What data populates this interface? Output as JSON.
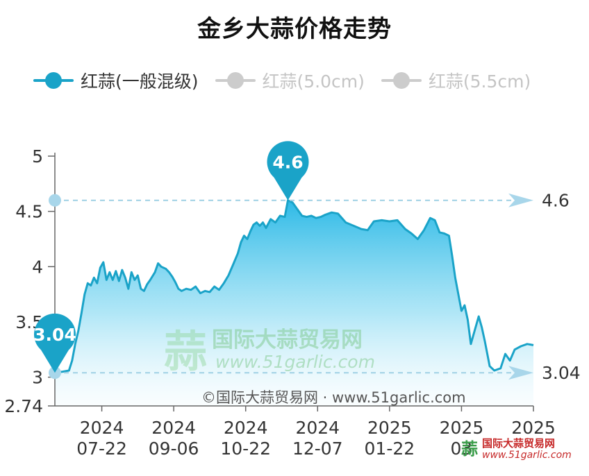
{
  "title": "金乡大蒜价格走势",
  "legend": [
    {
      "label": "红蒜(一般混级)",
      "color": "#1aa3c8",
      "active": true
    },
    {
      "label": "红蒜(5.0cm)",
      "color": "#cccccc",
      "active": false
    },
    {
      "label": "红蒜(5.5cm)",
      "color": "#cccccc",
      "active": false
    }
  ],
  "watermark": {
    "center_cn": "国际大蒜贸易网",
    "center_url": "www.51garlic.com",
    "center_logo_char": "蒜",
    "copyright": "©国际大蒜贸易网 · www.51garlic.com",
    "corner_cn": "国际大蒜贸易网",
    "corner_url": "www.51garlic.com"
  },
  "chart_data": {
    "type": "area",
    "title": "金乡大蒜价格走势",
    "xlabel": "",
    "ylabel": "",
    "ylim": [
      2.74,
      5
    ],
    "y_ticks": [
      "2.74",
      "3",
      "3.5",
      "4",
      "4.5",
      "5"
    ],
    "x_ticks": [
      {
        "label": [
          "2024",
          "07-22"
        ],
        "date": "2024-07-22"
      },
      {
        "label": [
          "2024",
          "09-06"
        ],
        "date": "2024-09-06"
      },
      {
        "label": [
          "2024",
          "10-22"
        ],
        "date": "2024-10-22"
      },
      {
        "label": [
          "2024",
          "12-07"
        ],
        "date": "2024-12-07"
      },
      {
        "label": [
          "2025",
          "01-22"
        ],
        "date": "2025-01-22"
      },
      {
        "label": [
          "2025",
          "03"
        ],
        "date": "2025-03-09"
      },
      {
        "label": [
          "2025",
          ""
        ],
        "date": "2025-04-24"
      }
    ],
    "x_range": [
      "2024-06-22",
      "2025-04-24"
    ],
    "grid": false,
    "legend_position": "top-left",
    "series": [
      {
        "name": "红蒜(一般混级)",
        "color": "#1aa3c8",
        "points": [
          [
            "2024-06-22",
            3.04
          ],
          [
            "2024-06-27",
            3.05
          ],
          [
            "2024-07-01",
            3.06
          ],
          [
            "2024-07-03",
            3.15
          ],
          [
            "2024-07-05",
            3.3
          ],
          [
            "2024-07-07",
            3.42
          ],
          [
            "2024-07-09",
            3.58
          ],
          [
            "2024-07-11",
            3.75
          ],
          [
            "2024-07-13",
            3.85
          ],
          [
            "2024-07-15",
            3.83
          ],
          [
            "2024-07-17",
            3.9
          ],
          [
            "2024-07-19",
            3.85
          ],
          [
            "2024-07-21",
            3.99
          ],
          [
            "2024-07-23",
            4.04
          ],
          [
            "2024-07-25",
            3.88
          ],
          [
            "2024-07-27",
            3.95
          ],
          [
            "2024-07-29",
            3.88
          ],
          [
            "2024-07-31",
            3.96
          ],
          [
            "2024-08-02",
            3.87
          ],
          [
            "2024-08-04",
            3.97
          ],
          [
            "2024-08-06",
            3.9
          ],
          [
            "2024-08-08",
            3.8
          ],
          [
            "2024-08-10",
            3.95
          ],
          [
            "2024-08-12",
            3.88
          ],
          [
            "2024-08-14",
            3.92
          ],
          [
            "2024-08-16",
            3.8
          ],
          [
            "2024-08-18",
            3.78
          ],
          [
            "2024-08-20",
            3.84
          ],
          [
            "2024-08-22",
            3.88
          ],
          [
            "2024-08-25",
            3.95
          ],
          [
            "2024-08-27",
            4.03
          ],
          [
            "2024-08-29",
            4.0
          ],
          [
            "2024-09-01",
            3.98
          ],
          [
            "2024-09-03",
            3.95
          ],
          [
            "2024-09-05",
            3.91
          ],
          [
            "2024-09-07",
            3.86
          ],
          [
            "2024-09-09",
            3.8
          ],
          [
            "2024-09-11",
            3.78
          ],
          [
            "2024-09-14",
            3.8
          ],
          [
            "2024-09-17",
            3.79
          ],
          [
            "2024-09-20",
            3.82
          ],
          [
            "2024-09-23",
            3.76
          ],
          [
            "2024-09-26",
            3.78
          ],
          [
            "2024-09-29",
            3.77
          ],
          [
            "2024-10-02",
            3.82
          ],
          [
            "2024-10-05",
            3.79
          ],
          [
            "2024-10-08",
            3.85
          ],
          [
            "2024-10-11",
            3.92
          ],
          [
            "2024-10-14",
            4.02
          ],
          [
            "2024-10-17",
            4.12
          ],
          [
            "2024-10-19",
            4.22
          ],
          [
            "2024-10-21",
            4.28
          ],
          [
            "2024-10-23",
            4.25
          ],
          [
            "2024-10-25",
            4.32
          ],
          [
            "2024-10-27",
            4.38
          ],
          [
            "2024-10-29",
            4.4
          ],
          [
            "2024-10-31",
            4.37
          ],
          [
            "2024-11-02",
            4.4
          ],
          [
            "2024-11-04",
            4.35
          ],
          [
            "2024-11-07",
            4.43
          ],
          [
            "2024-11-10",
            4.4
          ],
          [
            "2024-11-13",
            4.46
          ],
          [
            "2024-11-16",
            4.45
          ],
          [
            "2024-11-18",
            4.6
          ],
          [
            "2024-11-21",
            4.58
          ],
          [
            "2024-11-24",
            4.52
          ],
          [
            "2024-11-27",
            4.46
          ],
          [
            "2024-11-30",
            4.45
          ],
          [
            "2024-12-03",
            4.46
          ],
          [
            "2024-12-06",
            4.44
          ],
          [
            "2024-12-09",
            4.45
          ],
          [
            "2024-12-12",
            4.47
          ],
          [
            "2024-12-16",
            4.49
          ],
          [
            "2024-12-20",
            4.48
          ],
          [
            "2024-12-25",
            4.4
          ],
          [
            "2024-12-30",
            4.37
          ],
          [
            "2025-01-04",
            4.34
          ],
          [
            "2025-01-08",
            4.33
          ],
          [
            "2025-01-12",
            4.41
          ],
          [
            "2025-01-17",
            4.42
          ],
          [
            "2025-01-22",
            4.41
          ],
          [
            "2025-01-27",
            4.42
          ],
          [
            "2025-02-01",
            4.34
          ],
          [
            "2025-02-05",
            4.3
          ],
          [
            "2025-02-09",
            4.25
          ],
          [
            "2025-02-13",
            4.33
          ],
          [
            "2025-02-17",
            4.44
          ],
          [
            "2025-02-20",
            4.42
          ],
          [
            "2025-02-23",
            4.31
          ],
          [
            "2025-02-26",
            4.3
          ],
          [
            "2025-03-01",
            4.28
          ],
          [
            "2025-03-03",
            4.1
          ],
          [
            "2025-03-05",
            3.9
          ],
          [
            "2025-03-07",
            3.75
          ],
          [
            "2025-03-09",
            3.6
          ],
          [
            "2025-03-11",
            3.65
          ],
          [
            "2025-03-13",
            3.52
          ],
          [
            "2025-03-15",
            3.3
          ],
          [
            "2025-03-17",
            3.4
          ],
          [
            "2025-03-20",
            3.55
          ],
          [
            "2025-03-22",
            3.45
          ],
          [
            "2025-03-24",
            3.32
          ],
          [
            "2025-03-27",
            3.1
          ],
          [
            "2025-03-30",
            3.06
          ],
          [
            "2025-04-03",
            3.08
          ],
          [
            "2025-04-06",
            3.21
          ],
          [
            "2025-04-09",
            3.15
          ],
          [
            "2025-04-12",
            3.25
          ],
          [
            "2025-04-16",
            3.28
          ],
          [
            "2025-04-20",
            3.3
          ],
          [
            "2025-04-24",
            3.29
          ]
        ]
      }
    ],
    "markers": [
      {
        "label": "4.6",
        "date": "2024-11-18",
        "value": 4.6,
        "type": "max"
      },
      {
        "label": "3.04",
        "date": "2024-06-22",
        "value": 3.04,
        "type": "min"
      }
    ],
    "reference_lines": [
      {
        "label": "4.6",
        "value": 4.6
      },
      {
        "label": "3.04",
        "value": 3.04
      }
    ]
  }
}
